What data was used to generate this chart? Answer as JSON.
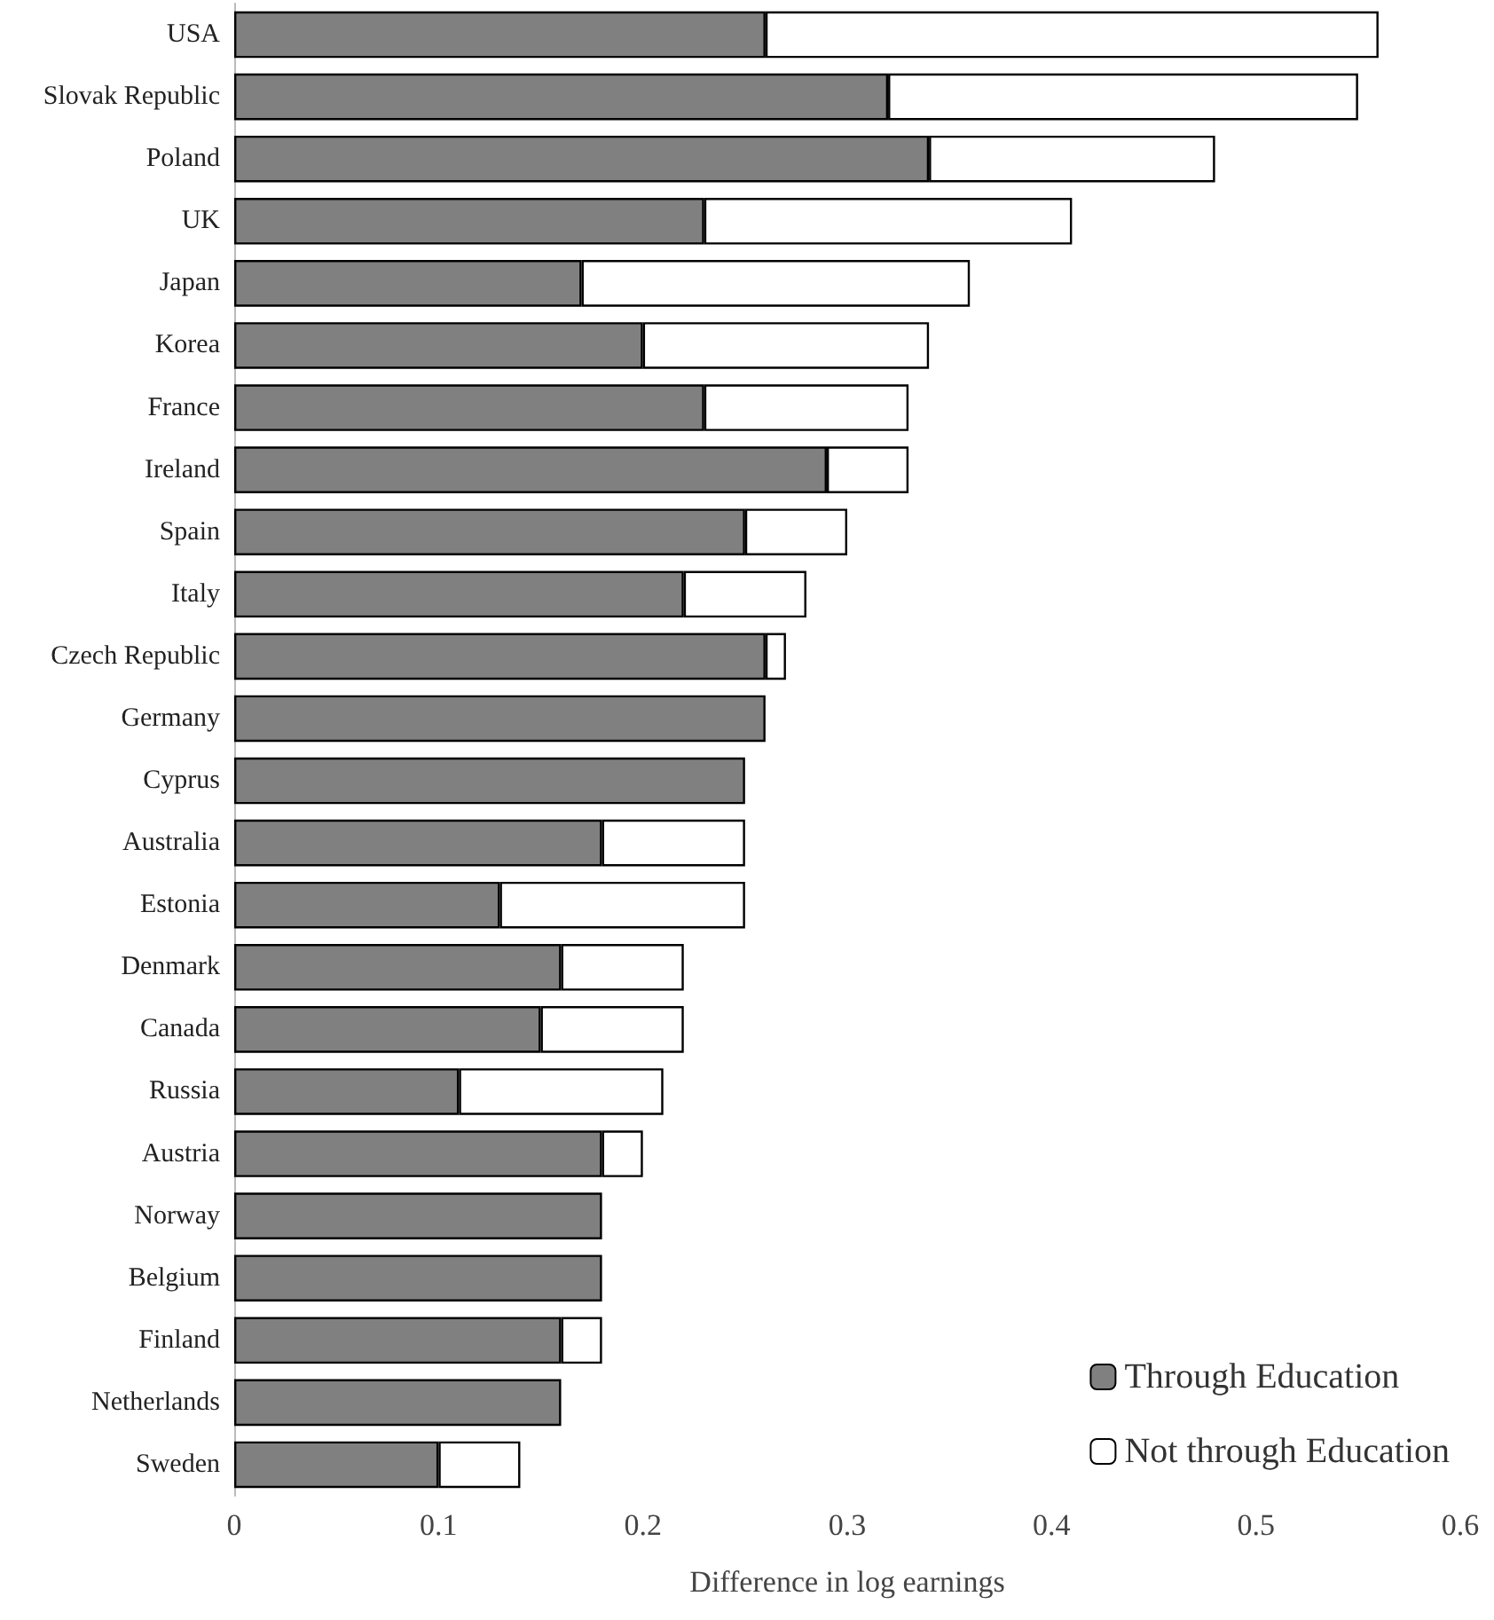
{
  "chart_data": {
    "type": "bar",
    "orientation": "horizontal",
    "stacked": true,
    "xlabel": "Difference in log earnings",
    "categories": [
      "USA",
      "Slovak Republic",
      "Poland",
      "UK",
      "Japan",
      "Korea",
      "France",
      "Ireland",
      "Spain",
      "Italy",
      "Czech Republic",
      "Germany",
      "Cyprus",
      "Australia",
      "Estonia",
      "Denmark",
      "Canada",
      "Russia",
      "Austria",
      "Norway",
      "Belgium",
      "Finland",
      "Netherlands",
      "Sweden"
    ],
    "series": [
      {
        "name": "Through Education",
        "color": "#808080",
        "values": [
          0.26,
          0.32,
          0.34,
          0.23,
          0.17,
          0.2,
          0.23,
          0.29,
          0.25,
          0.22,
          0.26,
          0.26,
          0.25,
          0.18,
          0.13,
          0.16,
          0.15,
          0.11,
          0.18,
          0.18,
          0.18,
          0.16,
          0.16,
          0.1
        ]
      },
      {
        "name": "Not through Education",
        "color": "#ffffff",
        "values": [
          0.3,
          0.23,
          0.14,
          0.18,
          0.19,
          0.14,
          0.1,
          0.04,
          0.05,
          0.06,
          0.01,
          null,
          null,
          0.07,
          0.12,
          0.06,
          0.07,
          0.1,
          0.02,
          null,
          null,
          0.02,
          null,
          0.04
        ]
      }
    ],
    "xlim": [
      0,
      0.6
    ],
    "xticks": [
      0,
      0.1,
      0.2,
      0.3,
      0.4,
      0.5,
      0.6
    ],
    "grid": false,
    "legend": "bottom right"
  }
}
